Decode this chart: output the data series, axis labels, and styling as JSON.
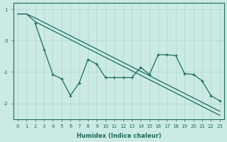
{
  "xlabel": "Humidex (Indice chaleur)",
  "bg_color": "#cceae4",
  "grid_color": "#aad4cc",
  "line_color": "#1a6b5a",
  "x_ticks": [
    0,
    1,
    2,
    3,
    4,
    5,
    6,
    7,
    8,
    9,
    10,
    11,
    12,
    13,
    14,
    15,
    16,
    17,
    18,
    19,
    20,
    21,
    22,
    23
  ],
  "ylim": [
    -2.5,
    1.2
  ],
  "xlim": [
    -0.5,
    23.5
  ],
  "line1": {
    "x": [
      0,
      1,
      2,
      23
    ],
    "y": [
      0.85,
      0.85,
      0.72,
      -2.25
    ]
  },
  "line2": {
    "x": [
      0,
      1,
      2,
      23
    ],
    "y": [
      0.85,
      0.85,
      0.6,
      -2.38
    ]
  },
  "line3": {
    "x": [
      2,
      3,
      4,
      5,
      6,
      7,
      8,
      9,
      10,
      11,
      12,
      13,
      14,
      15,
      16,
      17,
      18,
      19,
      20,
      21,
      22,
      23
    ],
    "y": [
      0.55,
      -0.28,
      -1.08,
      -1.22,
      -1.75,
      -1.35,
      -0.6,
      -0.75,
      -1.18,
      -1.18,
      -1.18,
      -1.18,
      -0.85,
      -1.08,
      -0.45,
      -0.45,
      -0.48,
      -1.05,
      -1.08,
      -1.28,
      -1.75,
      -1.92
    ]
  },
  "yticks": [
    -2,
    -1,
    0,
    1
  ],
  "ytick_labels": [
    "-2",
    "-1",
    "0",
    "1"
  ]
}
